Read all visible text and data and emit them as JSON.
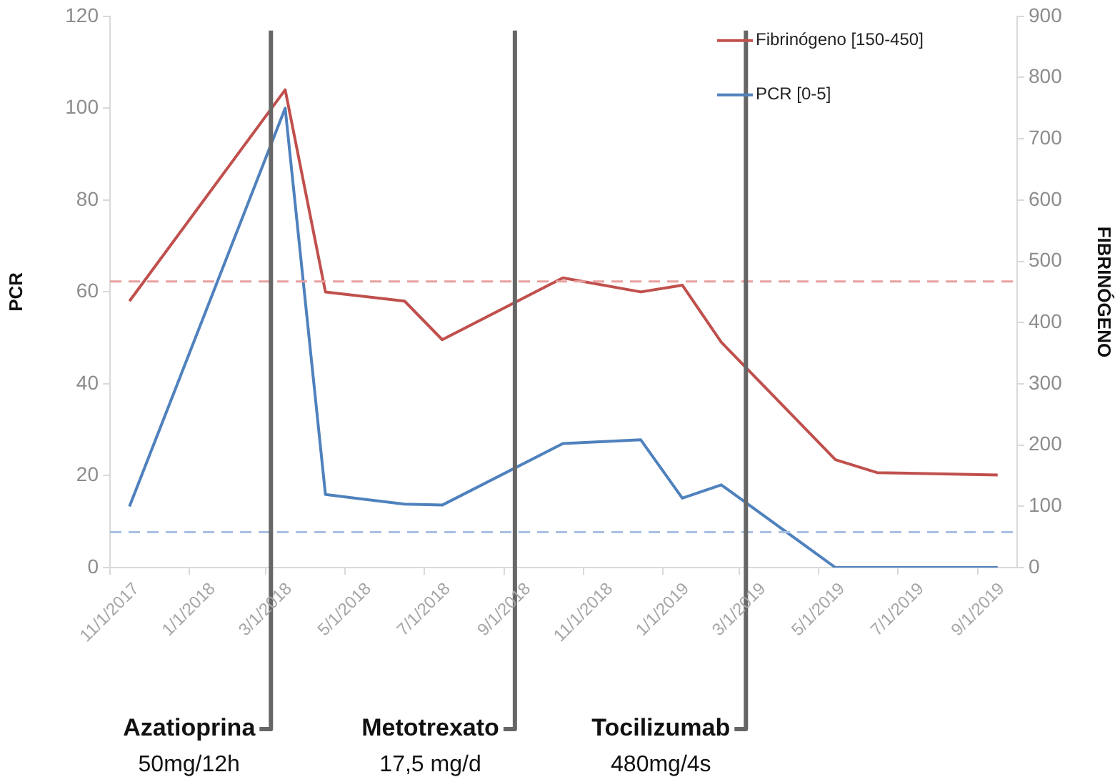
{
  "chart_data": {
    "type": "line",
    "ylabel": "PCR",
    "y2label": "FIBRINÓGENO",
    "xlim": [
      "2017-11-01",
      "2019-10-01"
    ],
    "xticks": [
      {
        "value": "2017-11-01",
        "label": "11/1/2017"
      },
      {
        "value": "2018-01-01",
        "label": "1/1/2018"
      },
      {
        "value": "2018-03-01",
        "label": "3/1/2018"
      },
      {
        "value": "2018-05-01",
        "label": "5/1/2018"
      },
      {
        "value": "2018-07-01",
        "label": "7/1/2018"
      },
      {
        "value": "2018-09-01",
        "label": "9/1/2018"
      },
      {
        "value": "2018-11-01",
        "label": "11/1/2018"
      },
      {
        "value": "2019-01-01",
        "label": "1/1/2019"
      },
      {
        "value": "2019-03-01",
        "label": "3/1/2019"
      },
      {
        "value": "2019-05-01",
        "label": "5/1/2019"
      },
      {
        "value": "2019-07-01",
        "label": "7/1/2019"
      },
      {
        "value": "2019-09-01",
        "label": "9/1/2019"
      }
    ],
    "ylim": [
      0,
      120
    ],
    "yticks": [
      0,
      20,
      40,
      60,
      80,
      100,
      120
    ],
    "y2lim": [
      0,
      900
    ],
    "y2ticks": [
      0,
      100,
      200,
      300,
      400,
      500,
      600,
      700,
      800,
      900
    ],
    "x": [
      "2017-11-16",
      "2018-03-16",
      "2018-04-16",
      "2018-06-16",
      "2018-07-15",
      "2018-10-16",
      "2018-12-15",
      "2019-01-16",
      "2019-02-15",
      "2019-05-14",
      "2019-06-15",
      "2019-09-16"
    ],
    "series": [
      {
        "name": "Fibrinógeno [150-450]",
        "color": "#c0504d",
        "axis": "y2",
        "values": [
          435,
          780,
          450,
          435,
          372,
          473,
          450,
          461,
          368,
          176,
          155,
          151
        ]
      },
      {
        "name": "PCR [0-5]",
        "color": "#4f81bd",
        "axis": "y",
        "values": [
          13.3,
          100,
          15.9,
          13.8,
          13.6,
          27,
          27.8,
          15.1,
          18,
          0,
          0,
          0
        ]
      }
    ],
    "ref_lines": [
      {
        "axis": "y2",
        "value": 467,
        "color": "#e8a09e",
        "line_style": "dashed"
      },
      {
        "axis": "y",
        "value": 7.7,
        "color": "#a9c0e3",
        "line_style": "dashed"
      },
      {
        "axis": "x",
        "value": "2018-03-05",
        "label": "Azatioprina",
        "color": "#666666",
        "line_style": "solid"
      },
      {
        "axis": "x",
        "value": "2018-09-09",
        "label": "Metotrexato",
        "color": "#666666",
        "line_style": "solid"
      },
      {
        "axis": "x",
        "value": "2019-03-06",
        "label": "Tocilizumab",
        "color": "#666666",
        "line_style": "solid"
      }
    ],
    "annotations": [
      "50mg/12h",
      "17,5 mg/d",
      "480mg/4s"
    ],
    "legend": "top right",
    "grid": false,
    "marker": "none",
    "line_style": "solid"
  }
}
